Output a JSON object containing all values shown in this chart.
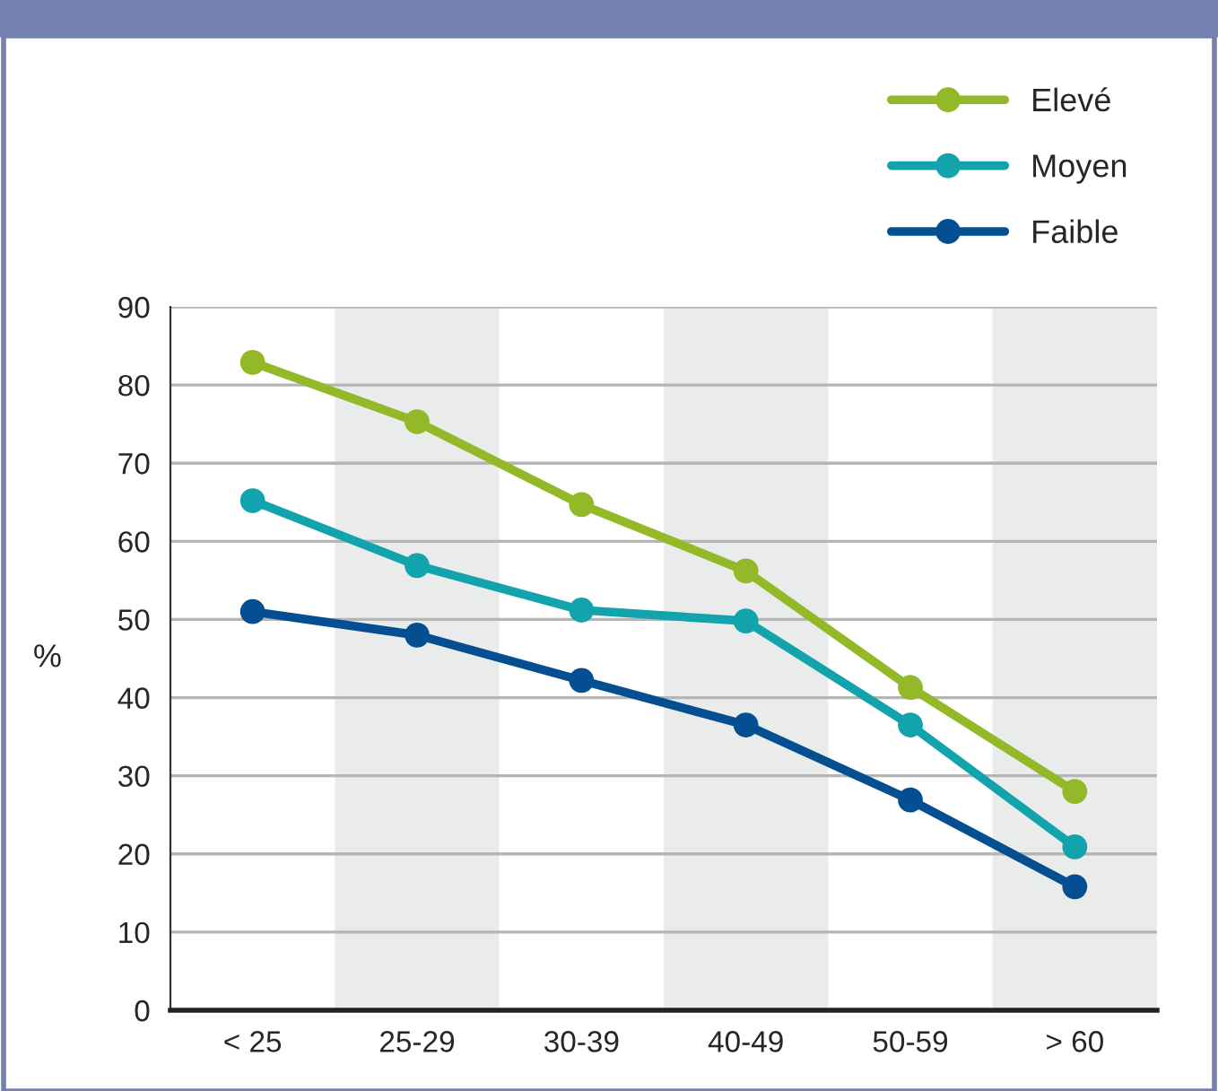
{
  "chart_data": {
    "type": "line",
    "ylabel": "%",
    "categories": [
      "< 25",
      "25-29",
      "30-39",
      "40-49",
      "50-59",
      "> 60"
    ],
    "series": [
      {
        "name": "Elevé",
        "color": "#94b928",
        "values": [
          82.9,
          75.3,
          64.7,
          56.2,
          41.3,
          28.0
        ]
      },
      {
        "name": "Moyen",
        "color": "#12a3ad",
        "values": [
          65.2,
          56.9,
          51.2,
          49.8,
          36.5,
          20.9
        ]
      },
      {
        "name": "Faible",
        "color": "#034f92",
        "values": [
          51.0,
          48.0,
          42.2,
          36.5,
          26.9,
          15.8
        ]
      }
    ],
    "ylim": [
      0,
      90
    ],
    "yticks": [
      0,
      10,
      20,
      30,
      40,
      50,
      60,
      70,
      80,
      90
    ],
    "grid": "y",
    "legend": "top right",
    "marker": "circle",
    "line_style": "solid",
    "bands": [
      {
        "axis": "x",
        "from": "25-29",
        "to": "25-29",
        "color": "#eaebeb"
      },
      {
        "axis": "x",
        "from": "40-49",
        "to": "40-49",
        "color": "#eaebeb"
      },
      {
        "axis": "x",
        "from": "> 60",
        "to": "> 60",
        "color": "#eaebeb"
      }
    ]
  }
}
